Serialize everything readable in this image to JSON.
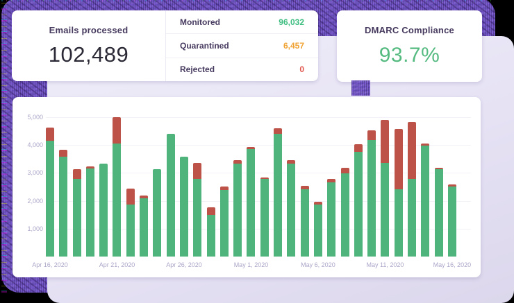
{
  "cards": {
    "emails_processed": {
      "title": "Emails processed",
      "value": "102,489"
    },
    "breakdown": {
      "rows": [
        {
          "label": "Monitored",
          "value": "96,032",
          "color": "#3dbd80"
        },
        {
          "label": "Quarantined",
          "value": "6,457",
          "color": "#f0a232"
        },
        {
          "label": "Rejected",
          "value": "0",
          "color": "#e2574e"
        }
      ]
    },
    "dmarc": {
      "title": "DMARC Compliance",
      "value": "93.7%"
    }
  },
  "colors": {
    "monitored_bar": "#4fb47c",
    "quarantined_bar": "#bd5348",
    "backdrop": "#e6e2f4",
    "glitch_purple": "#6a50bf"
  },
  "chart_data": {
    "type": "bar",
    "stacked": true,
    "x": [
      "Apr 16, 2020",
      "Apr 17, 2020",
      "Apr 18, 2020",
      "Apr 19, 2020",
      "Apr 20, 2020",
      "Apr 21, 2020",
      "Apr 22, 2020",
      "Apr 23, 2020",
      "Apr 24, 2020",
      "Apr 25, 2020",
      "Apr 26, 2020",
      "Apr 27, 2020",
      "Apr 28, 2020",
      "Apr 29, 2020",
      "Apr 30, 2020",
      "May 1, 2020",
      "May 2, 2020",
      "May 3, 2020",
      "May 4, 2020",
      "May 5, 2020",
      "May 6, 2020",
      "May 7, 2020",
      "May 8, 2020",
      "May 9, 2020",
      "May 10, 2020",
      "May 11, 2020",
      "May 12, 2020",
      "May 13, 2020",
      "May 14, 2020",
      "May 15, 2020",
      "May 16, 2020"
    ],
    "series": [
      {
        "name": "Monitored",
        "color": "#4fb47c",
        "values": [
          4150,
          3580,
          2780,
          3150,
          3340,
          4050,
          1860,
          2100,
          3130,
          4400,
          3580,
          2780,
          1490,
          2380,
          3330,
          3860,
          2780,
          4410,
          3330,
          2410,
          1870,
          2670,
          2990,
          3750,
          4170,
          3350,
          2410,
          2780,
          3970,
          3130,
          2520
        ]
      },
      {
        "name": "Quarantined",
        "color": "#bd5348",
        "values": [
          480,
          250,
          350,
          80,
          0,
          950,
          580,
          90,
          0,
          0,
          0,
          580,
          270,
          140,
          130,
          70,
          60,
          190,
          140,
          120,
          100,
          120,
          190,
          290,
          350,
          1540,
          2180,
          2050,
          80,
          50,
          70
        ]
      }
    ],
    "ylim": [
      0,
      5000
    ],
    "yticks": [
      {
        "value": 1000,
        "label": "1,000"
      },
      {
        "value": 2000,
        "label": "2,000"
      },
      {
        "value": 3000,
        "label": "3,000"
      },
      {
        "value": 4000,
        "label": "4,000"
      },
      {
        "value": 5000,
        "label": "5,000"
      }
    ],
    "xtick_every": 5,
    "grid": true,
    "legend": "none",
    "title": ""
  }
}
